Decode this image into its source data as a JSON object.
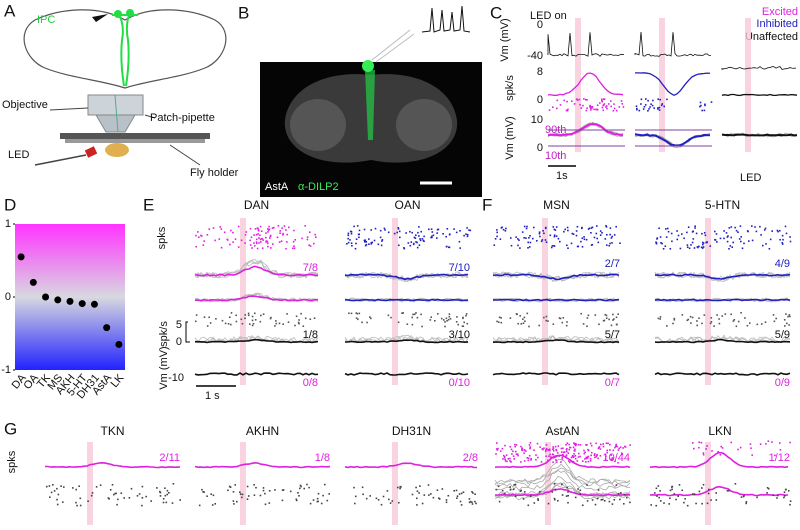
{
  "panel_labels": [
    "A",
    "B",
    "C",
    "D",
    "E",
    "F",
    "G"
  ],
  "panel_a": {
    "ipc": "IPC",
    "objective": "Objective",
    "pipette": "Patch-pipette",
    "led": "LED",
    "holder": "Fly holder"
  },
  "panel_b": {
    "stain": "AstA",
    "antibody": "α-DILP2"
  },
  "panel_c": {
    "led_on": "LED on",
    "legend": [
      "Excited",
      "Inhibited",
      "Unaffected"
    ],
    "vm_label": "Vm (mV)",
    "rate_label": "spk/s",
    "vm_ticks": [
      0,
      -40
    ],
    "rate_ticks": [
      8,
      0
    ],
    "vm2_ticks": [
      10,
      0
    ],
    "p90": "90th",
    "p10": "10th",
    "scale": "1s",
    "led": "LED"
  },
  "chart_data": {
    "type": "scatter",
    "categories": [
      "DA",
      "OA",
      "TK",
      "MS",
      "AKH",
      "5-HT",
      "DH31",
      "AstA",
      "LK"
    ],
    "values": [
      0.55,
      0.2,
      0,
      -0.04,
      -0.06,
      -0.09,
      -0.1,
      -0.42,
      -0.65
    ],
    "ylim": [
      -1,
      1
    ],
    "yticks": [
      -1,
      0,
      1
    ],
    "color": "#000000"
  },
  "panel_e": {
    "spks": "spks",
    "rate": "spk/s",
    "vm": "Vm (mV)",
    "rate_ticks": [
      5,
      0
    ],
    "vm_ticks": [
      -10
    ],
    "scale": "1 s",
    "cells": [
      {
        "title": "DAN",
        "fractions": [
          "7/8",
          "1/8",
          "0/8"
        ]
      },
      {
        "title": "OAN",
        "fractions": [
          "7/10",
          "3/10",
          "0/10"
        ]
      }
    ]
  },
  "panel_f": {
    "cells": [
      {
        "title": "MSN",
        "fractions": [
          "2/7",
          "5/7",
          "0/7"
        ]
      },
      {
        "title": "5-HTN",
        "fractions": [
          "4/9",
          "5/9",
          "0/9"
        ]
      }
    ]
  },
  "panel_g": {
    "spks": "spks",
    "cells": [
      {
        "title": "TKN",
        "fraction": "2/11"
      },
      {
        "title": "AKHN",
        "fraction": "1/8"
      },
      {
        "title": "DH31N",
        "fraction": "2/8"
      },
      {
        "title": "AstAN",
        "fraction": "10/44"
      },
      {
        "title": "LKN",
        "fraction": "1/12"
      }
    ]
  }
}
